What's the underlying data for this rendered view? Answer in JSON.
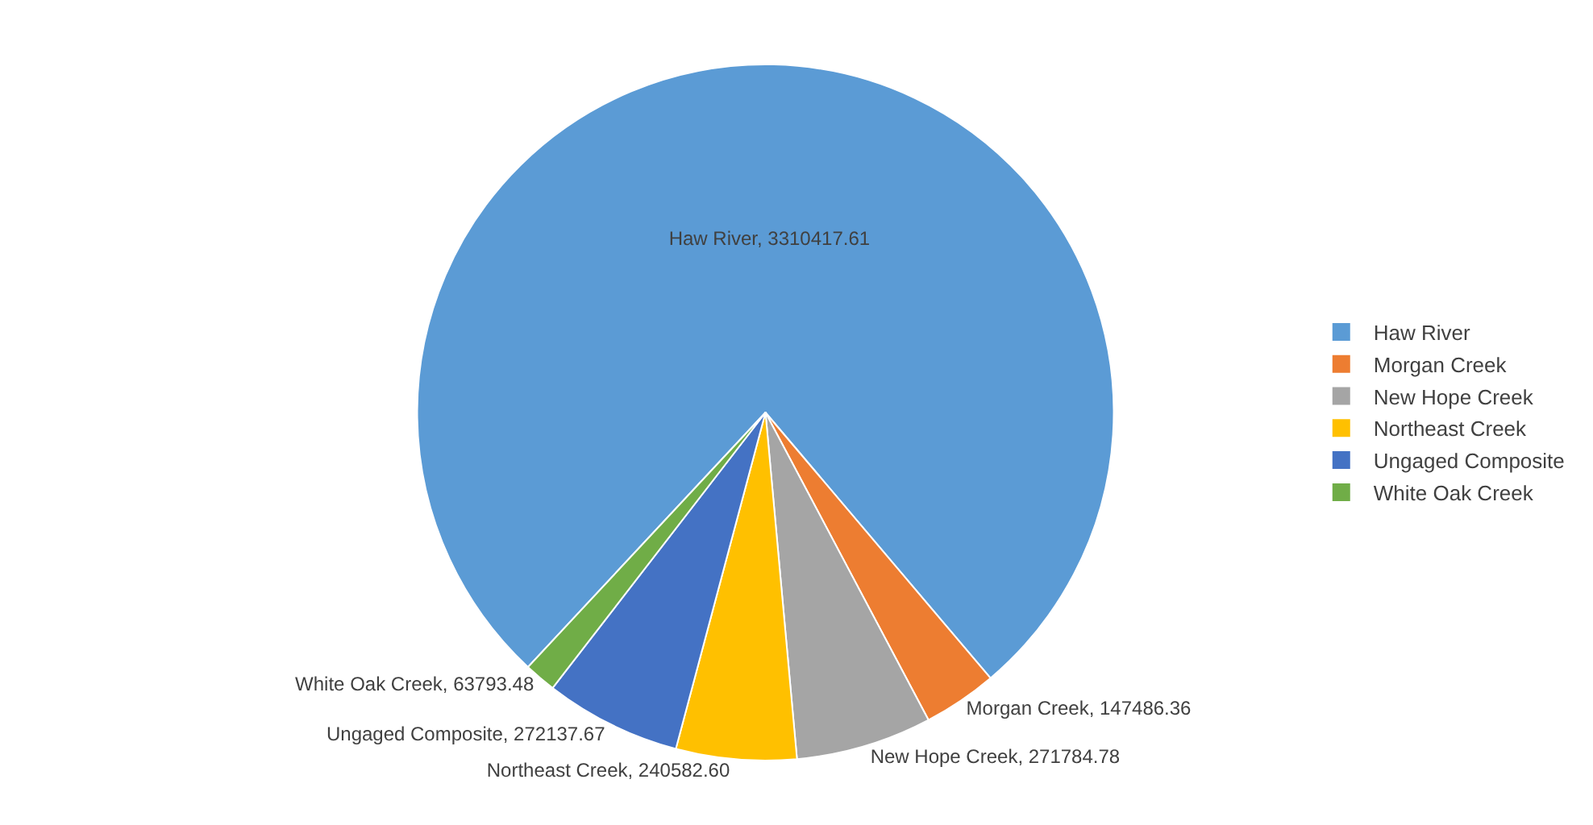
{
  "chart_data": {
    "type": "pie",
    "categories": [
      "Haw River",
      "Morgan Creek",
      "New Hope Creek",
      "Northeast Creek",
      "Ungaged Composite",
      "White Oak Creek"
    ],
    "values": [
      3310417.61,
      147486.36,
      271784.78,
      240582.6,
      272137.67,
      63793.48
    ],
    "value_labels": [
      "Haw River, 3310417.61",
      "Morgan Creek, 147486.36",
      "New Hope Creek, 271784.78",
      "Northeast Creek, 240582.60",
      "Ungaged Composite, 272137.67",
      "White Oak Creek, 63793.48"
    ],
    "colors": [
      "#5b9bd5",
      "#ed7d31",
      "#a5a5a5",
      "#ffc000",
      "#4472c4",
      "#70ad47"
    ],
    "legend": "right"
  }
}
